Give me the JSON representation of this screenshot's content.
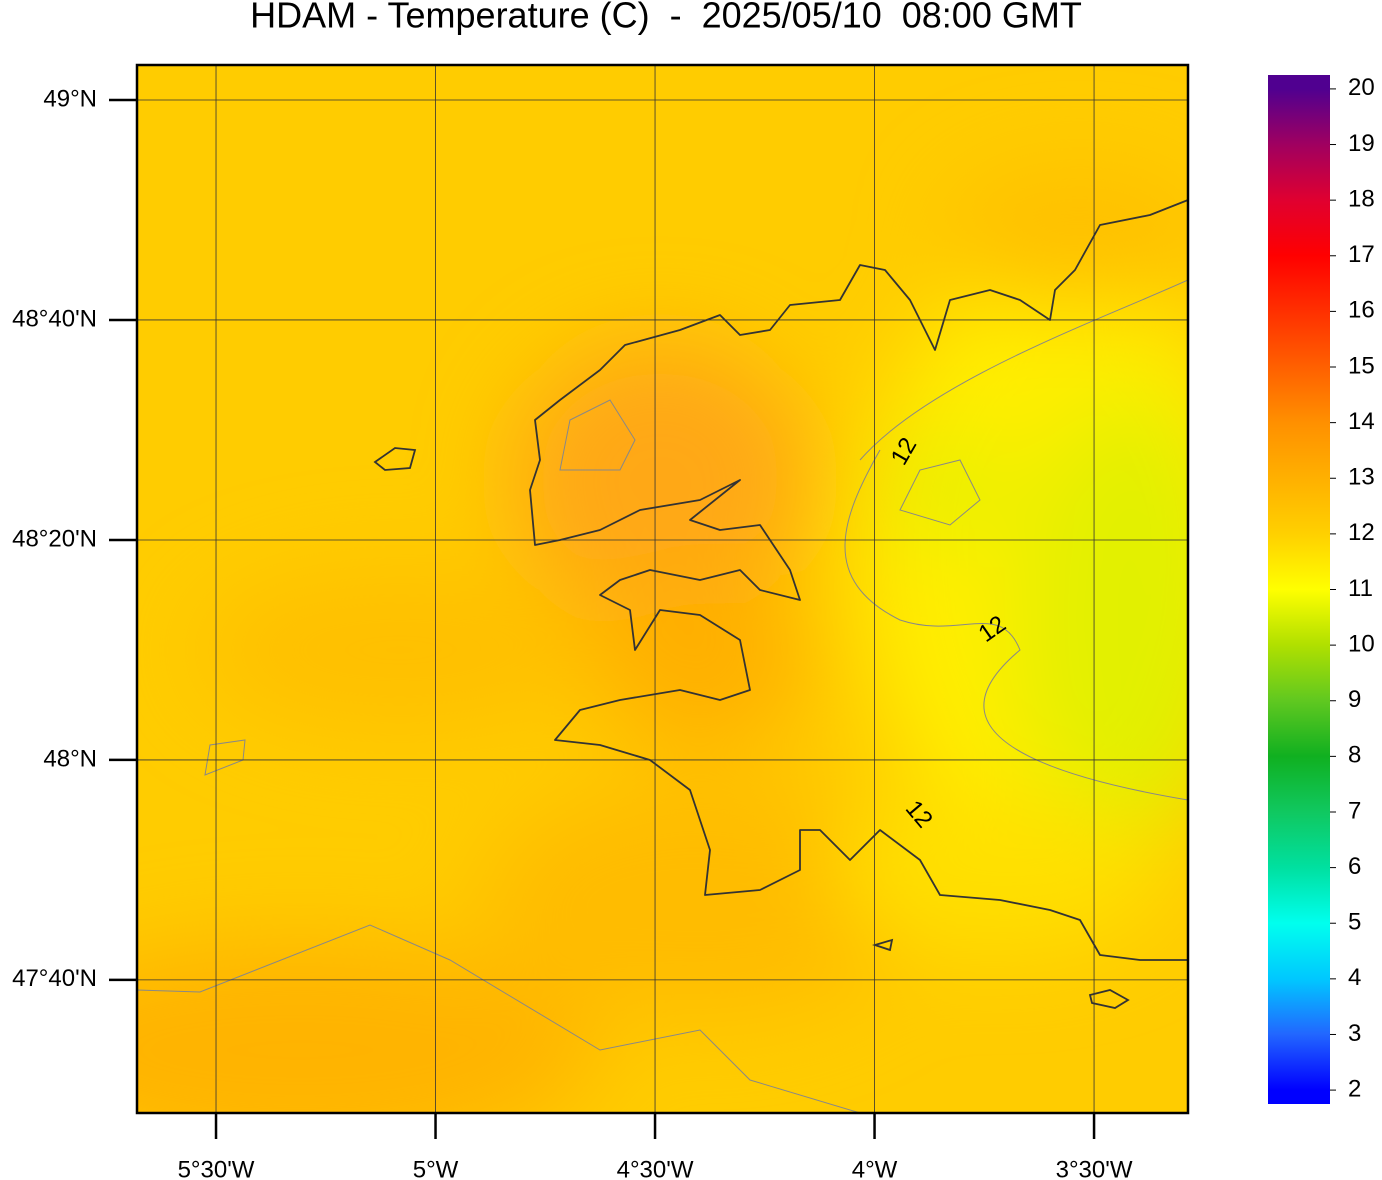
{
  "chart_data": {
    "type": "map",
    "title": "HDAM - Temperature (C)  -  2025/05/10  08:00 GMT",
    "xlim": [
      -5.68,
      -3.286
    ],
    "ylim": [
      47.465,
      49.053
    ],
    "xticks": [
      {
        "value": -5.5,
        "label": "5°30'W"
      },
      {
        "value": -5,
        "label": "5°W"
      },
      {
        "value": -4.5,
        "label": "4°30'W"
      },
      {
        "value": -4,
        "label": "4°W"
      },
      {
        "value": -3.5,
        "label": "3°30'W"
      }
    ],
    "yticks": [
      {
        "value": 47.6667,
        "label": "47°40'N"
      },
      {
        "value": 48,
        "label": "48°N"
      },
      {
        "value": 48.3333,
        "label": "48°20'N"
      },
      {
        "value": 48.6667,
        "label": "48°40'N"
      },
      {
        "value": 49,
        "label": "49°N"
      }
    ],
    "grid": true,
    "contour_labels": [
      "12",
      "12",
      "12"
    ],
    "colorbar": {
      "lim": [
        1.75,
        20.25
      ],
      "ticks": [
        2,
        3,
        4,
        5,
        6,
        7,
        8,
        9,
        10,
        11,
        12,
        13,
        14,
        15,
        16,
        17,
        18,
        19,
        20
      ],
      "colors": [
        "#0000ff",
        "#2266ff",
        "#00c8ff",
        "#00ffee",
        "#00e0a0",
        "#10c860",
        "#10b020",
        "#60c820",
        "#b0e000",
        "#ffff00",
        "#ffd000",
        "#ffb000",
        "#ff9000",
        "#ff6000",
        "#ff3000",
        "#ff0000",
        "#e00030",
        "#a00060",
        "#500090"
      ]
    }
  }
}
